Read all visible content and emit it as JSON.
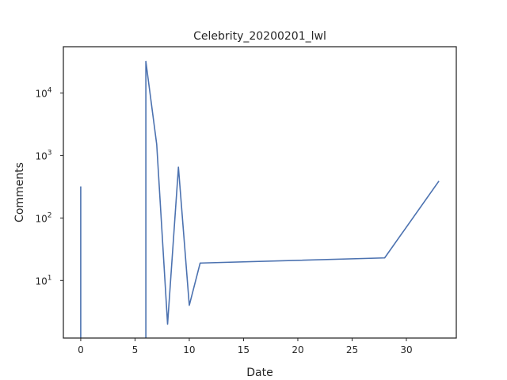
{
  "chart_data": {
    "type": "line",
    "title": "Celebrity_20200201_lwl",
    "xlabel": "Date",
    "ylabel": "Comments",
    "xscale": "linear",
    "yscale": "log",
    "xlim": [
      -1.6,
      34.6
    ],
    "ylim": [
      1.2,
      55000
    ],
    "grid": false,
    "legend": "none",
    "series": [
      {
        "color": "#4c72b0",
        "points": [
          [
            0,
            320
          ],
          [
            0,
            1.2
          ],
          [
            0,
            0
          ],
          [
            6,
            0
          ],
          [
            6,
            1.2
          ],
          [
            6,
            32000
          ],
          [
            7,
            1500
          ],
          [
            8,
            2
          ],
          [
            9,
            650
          ],
          [
            10,
            4
          ],
          [
            11,
            19
          ],
          [
            28,
            23
          ],
          [
            33,
            390
          ]
        ]
      }
    ],
    "xticks": [
      {
        "value": 0,
        "label": "0"
      },
      {
        "value": 5,
        "label": "5"
      },
      {
        "value": 10,
        "label": "10"
      },
      {
        "value": 15,
        "label": "15"
      },
      {
        "value": 20,
        "label": "20"
      },
      {
        "value": 25,
        "label": "25"
      },
      {
        "value": 30,
        "label": "30"
      }
    ],
    "yticks": [
      {
        "value": 10,
        "base": "10",
        "exp": "1"
      },
      {
        "value": 100,
        "base": "10",
        "exp": "2"
      },
      {
        "value": 1000,
        "base": "10",
        "exp": "3"
      },
      {
        "value": 10000,
        "base": "10",
        "exp": "4"
      }
    ]
  }
}
